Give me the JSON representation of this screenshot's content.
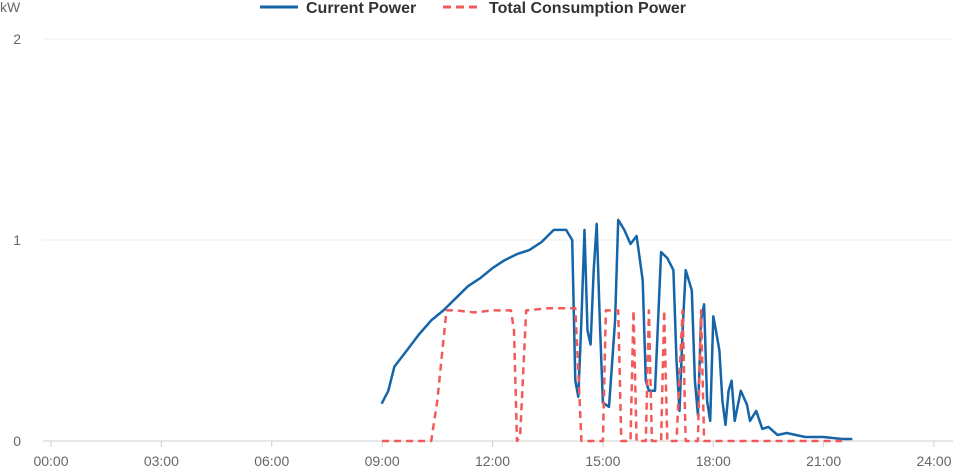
{
  "chart_data": {
    "type": "line",
    "ylabel": "kW",
    "xlim": [
      "00:00",
      "24:00"
    ],
    "ylim": [
      0,
      2
    ],
    "x_ticks": [
      "00:00",
      "03:00",
      "06:00",
      "09:00",
      "12:00",
      "15:00",
      "18:00",
      "21:00",
      "24:00"
    ],
    "y_ticks": [
      "0",
      "1",
      "2"
    ],
    "grid": true,
    "legend": "top-center",
    "series": [
      {
        "name": "Current Power",
        "color": "#1565a8",
        "style": "solid",
        "points": [
          [
            "09:00",
            0.19
          ],
          [
            "09:10",
            0.25
          ],
          [
            "09:20",
            0.37
          ],
          [
            "09:40",
            0.45
          ],
          [
            "10:00",
            0.53
          ],
          [
            "10:20",
            0.6
          ],
          [
            "10:40",
            0.65
          ],
          [
            "11:00",
            0.71
          ],
          [
            "11:20",
            0.77
          ],
          [
            "11:40",
            0.81
          ],
          [
            "12:00",
            0.86
          ],
          [
            "12:20",
            0.9
          ],
          [
            "12:40",
            0.93
          ],
          [
            "13:00",
            0.95
          ],
          [
            "13:20",
            0.99
          ],
          [
            "13:40",
            1.05
          ],
          [
            "14:00",
            1.05
          ],
          [
            "14:10",
            1.0
          ],
          [
            "14:15",
            0.3
          ],
          [
            "14:20",
            0.22
          ],
          [
            "14:25",
            0.6
          ],
          [
            "14:30",
            1.05
          ],
          [
            "14:35",
            0.55
          ],
          [
            "14:40",
            0.48
          ],
          [
            "14:45",
            0.85
          ],
          [
            "14:50",
            1.08
          ],
          [
            "14:55",
            0.6
          ],
          [
            "15:00",
            0.19
          ],
          [
            "15:10",
            0.17
          ],
          [
            "15:20",
            0.6
          ],
          [
            "15:25",
            1.1
          ],
          [
            "15:35",
            1.05
          ],
          [
            "15:45",
            0.98
          ],
          [
            "15:55",
            1.02
          ],
          [
            "16:05",
            0.8
          ],
          [
            "16:10",
            0.3
          ],
          [
            "16:15",
            0.25
          ],
          [
            "16:25",
            0.25
          ],
          [
            "16:30",
            0.6
          ],
          [
            "16:35",
            0.94
          ],
          [
            "16:45",
            0.91
          ],
          [
            "16:55",
            0.85
          ],
          [
            "17:00",
            0.4
          ],
          [
            "17:05",
            0.15
          ],
          [
            "17:10",
            0.55
          ],
          [
            "17:15",
            0.85
          ],
          [
            "17:25",
            0.75
          ],
          [
            "17:30",
            0.3
          ],
          [
            "17:35",
            0.13
          ],
          [
            "17:40",
            0.6
          ],
          [
            "17:45",
            0.68
          ],
          [
            "17:50",
            0.2
          ],
          [
            "17:55",
            0.1
          ],
          [
            "18:00",
            0.62
          ],
          [
            "18:05",
            0.54
          ],
          [
            "18:10",
            0.45
          ],
          [
            "18:15",
            0.2
          ],
          [
            "18:20",
            0.08
          ],
          [
            "18:25",
            0.25
          ],
          [
            "18:30",
            0.3
          ],
          [
            "18:35",
            0.1
          ],
          [
            "18:45",
            0.25
          ],
          [
            "18:55",
            0.18
          ],
          [
            "19:00",
            0.1
          ],
          [
            "19:10",
            0.15
          ],
          [
            "19:20",
            0.06
          ],
          [
            "19:30",
            0.07
          ],
          [
            "19:45",
            0.03
          ],
          [
            "20:00",
            0.04
          ],
          [
            "20:30",
            0.02
          ],
          [
            "21:00",
            0.02
          ],
          [
            "21:30",
            0.01
          ],
          [
            "21:45",
            0.01
          ]
        ]
      },
      {
        "name": "Total Consumption Power",
        "color": "#f25a5a",
        "style": "dashed",
        "points": [
          [
            "09:00",
            0.0
          ],
          [
            "10:20",
            0.0
          ],
          [
            "10:30",
            0.2
          ],
          [
            "10:40",
            0.5
          ],
          [
            "10:45",
            0.65
          ],
          [
            "11:00",
            0.65
          ],
          [
            "11:30",
            0.64
          ],
          [
            "12:00",
            0.65
          ],
          [
            "12:30",
            0.65
          ],
          [
            "12:35",
            0.55
          ],
          [
            "12:40",
            0.0
          ],
          [
            "12:45",
            0.02
          ],
          [
            "12:55",
            0.65
          ],
          [
            "13:30",
            0.66
          ],
          [
            "14:15",
            0.66
          ],
          [
            "14:20",
            0.35
          ],
          [
            "14:25",
            0.0
          ],
          [
            "15:00",
            0.0
          ],
          [
            "15:05",
            0.65
          ],
          [
            "15:25",
            0.65
          ],
          [
            "15:30",
            0.0
          ],
          [
            "15:45",
            0.0
          ],
          [
            "15:50",
            0.65
          ],
          [
            "15:55",
            0.0
          ],
          [
            "16:10",
            0.0
          ],
          [
            "16:15",
            0.65
          ],
          [
            "16:20",
            0.0
          ],
          [
            "16:35",
            0.0
          ],
          [
            "16:40",
            0.65
          ],
          [
            "16:45",
            0.0
          ],
          [
            "17:00",
            0.0
          ],
          [
            "17:10",
            0.65
          ],
          [
            "17:15",
            0.0
          ],
          [
            "17:35",
            0.0
          ],
          [
            "17:40",
            0.65
          ],
          [
            "17:45",
            0.0
          ],
          [
            "21:30",
            0.0
          ]
        ]
      }
    ]
  }
}
